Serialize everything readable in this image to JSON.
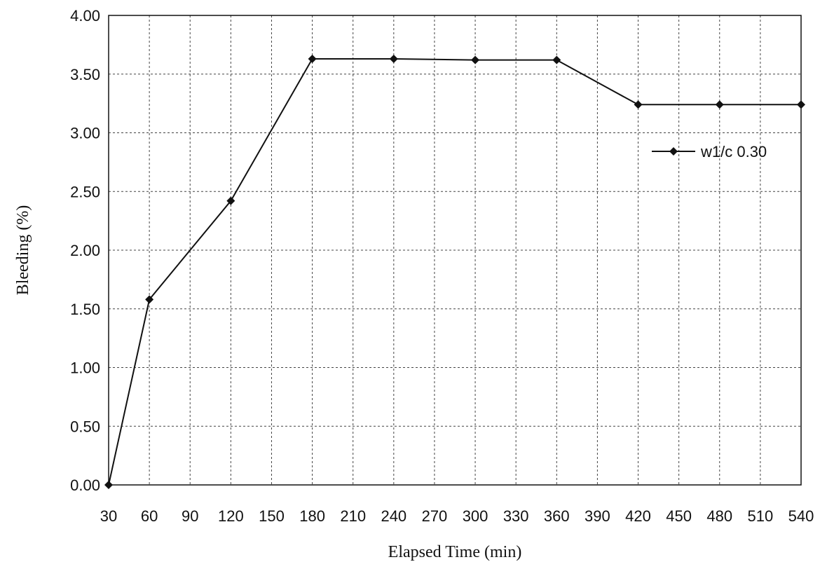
{
  "chart_data": {
    "type": "line",
    "xlabel": "Elapsed Time (min)",
    "ylabel": "Bleeding (%)",
    "x_ticks": [
      "30",
      "60",
      "90",
      "120",
      "150",
      "180",
      "210",
      "240",
      "270",
      "300",
      "330",
      "360",
      "390",
      "420",
      "450",
      "480",
      "510",
      "540"
    ],
    "y_ticks": [
      "0.00",
      "0.50",
      "1.00",
      "1.50",
      "2.00",
      "2.50",
      "3.00",
      "3.50",
      "4.00"
    ],
    "xlim": [
      30,
      540
    ],
    "ylim": [
      0,
      4
    ],
    "grid": true,
    "legend_position": "right",
    "series": [
      {
        "name": "w1/c 0.30",
        "color": "#111111",
        "marker": "diamond",
        "x": [
          30,
          60,
          120,
          180,
          240,
          300,
          360,
          420,
          480,
          540
        ],
        "y": [
          0.0,
          1.58,
          2.42,
          3.63,
          3.63,
          3.62,
          3.62,
          3.24,
          3.24,
          3.24
        ]
      }
    ]
  }
}
